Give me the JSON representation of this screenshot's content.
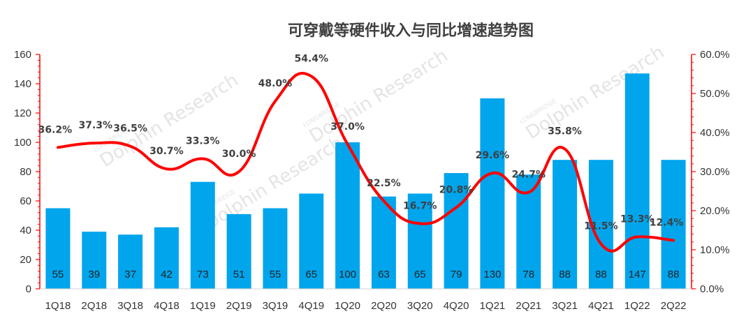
{
  "chart_data": {
    "type": "bar+line",
    "title": "可穿戴等硬件收入与同比增速趋势图",
    "categories": [
      "1Q18",
      "2Q18",
      "3Q18",
      "4Q18",
      "1Q19",
      "2Q19",
      "3Q19",
      "4Q19",
      "1Q20",
      "2Q20",
      "3Q20",
      "4Q20",
      "1Q21",
      "2Q21",
      "3Q21",
      "4Q21",
      "1Q22",
      "2Q22"
    ],
    "series": [
      {
        "name": "revenue",
        "type": "bar",
        "axis": "left",
        "color": "#00a5ec",
        "values": [
          55,
          39,
          37,
          42,
          73,
          51,
          55,
          65,
          100,
          63,
          65,
          79,
          130,
          78,
          88,
          88,
          147,
          88
        ],
        "labels": [
          "55",
          "39",
          "37",
          "42",
          "73",
          "51",
          "55",
          "65",
          "100",
          "63",
          "65",
          "79",
          "130",
          "78",
          "88",
          "88",
          "147",
          "88"
        ]
      },
      {
        "name": "yoy_growth",
        "type": "line",
        "axis": "right",
        "color": "#ff0000",
        "values": [
          36.2,
          37.3,
          36.5,
          30.7,
          33.3,
          30.0,
          48.0,
          54.4,
          37.0,
          22.5,
          16.7,
          20.8,
          29.6,
          24.7,
          35.8,
          11.5,
          13.3,
          12.4
        ],
        "labels": [
          "36.2%",
          "37.3%",
          "36.5%",
          "30.7%",
          "33.3%",
          "30.0%",
          "48.0%",
          "54.4%",
          "37.0%",
          "22.5%",
          "16.7%",
          "20.8%",
          "29.6%",
          "24.7%",
          "35.8%",
          "11.5%",
          "13.3%",
          "12.4%"
        ]
      }
    ],
    "y_left": {
      "min": 0,
      "max": 160,
      "ticks": [
        "0",
        "20",
        "40",
        "60",
        "80",
        "100",
        "120",
        "140",
        "160"
      ]
    },
    "y_right": {
      "min": 0,
      "max": 60,
      "ticks": [
        "0.0%",
        "10.0%",
        "20.0%",
        "30.0%",
        "40.0%",
        "50.0%",
        "60.0%"
      ]
    },
    "axis_color": "#ff0000",
    "watermark": [
      "LONGBRIDGE",
      "Dolphin Research"
    ]
  }
}
